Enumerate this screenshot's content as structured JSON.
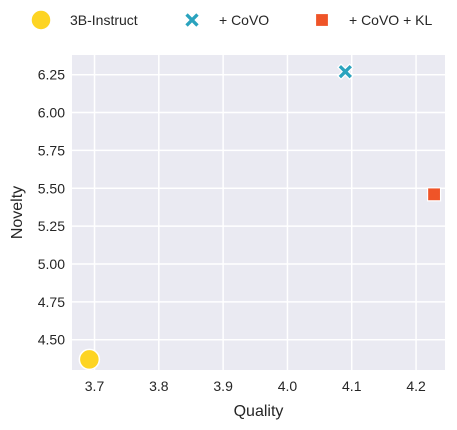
{
  "chart_data": {
    "type": "scatter",
    "xlabel": "Quality",
    "ylabel": "Novelty",
    "xlim": [
      3.665,
      4.245
    ],
    "ylim": [
      4.3,
      6.38
    ],
    "xticks": [
      3.7,
      3.8,
      3.9,
      4.0,
      4.1,
      4.2
    ],
    "xtick_labels": [
      "3.7",
      "3.8",
      "3.9",
      "4.0",
      "4.1",
      "4.2"
    ],
    "yticks": [
      4.5,
      4.75,
      5.0,
      5.25,
      5.5,
      5.75,
      6.0,
      6.25
    ],
    "ytick_labels": [
      "4.50",
      "4.75",
      "5.00",
      "5.25",
      "5.50",
      "5.75",
      "6.00",
      "6.25"
    ],
    "grid": true,
    "legend_position": "top",
    "series": [
      {
        "name": "3B-Instruct",
        "marker": "circle",
        "color": "#FDD423",
        "points": [
          {
            "x": 3.692,
            "y": 4.37
          }
        ]
      },
      {
        "name": "+ CoVO",
        "marker": "x",
        "color": "#2AA3BE",
        "points": [
          {
            "x": 4.09,
            "y": 6.27
          }
        ]
      },
      {
        "name": "+ CoVO + KL",
        "marker": "square",
        "color": "#EF5428",
        "points": [
          {
            "x": 4.228,
            "y": 5.46
          }
        ]
      }
    ]
  }
}
